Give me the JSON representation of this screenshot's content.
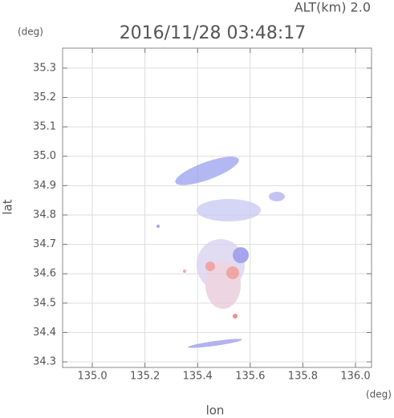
{
  "chart_data": {
    "type": "scatter",
    "title": "2016/11/28 03:48:17",
    "subtitle": "ALT(km) 2.0",
    "x_label": "lon",
    "y_label": "lat",
    "x_unit": "(deg)",
    "y_unit": "(deg)",
    "xlim": [
      134.887,
      136.061
    ],
    "ylim": [
      34.281,
      35.368
    ],
    "xticks": [
      {
        "value": 135,
        "label": "135.0"
      },
      135.2,
      135.4,
      135.6,
      135.8,
      {
        "value": 136,
        "label": "136.0"
      }
    ],
    "yticks": [
      34.3,
      34.4,
      34.5,
      34.6,
      34.7,
      34.8,
      34.9,
      {
        "value": 35,
        "label": "35.0"
      },
      35.1,
      35.2,
      35.3
    ],
    "grid": true
  }
}
